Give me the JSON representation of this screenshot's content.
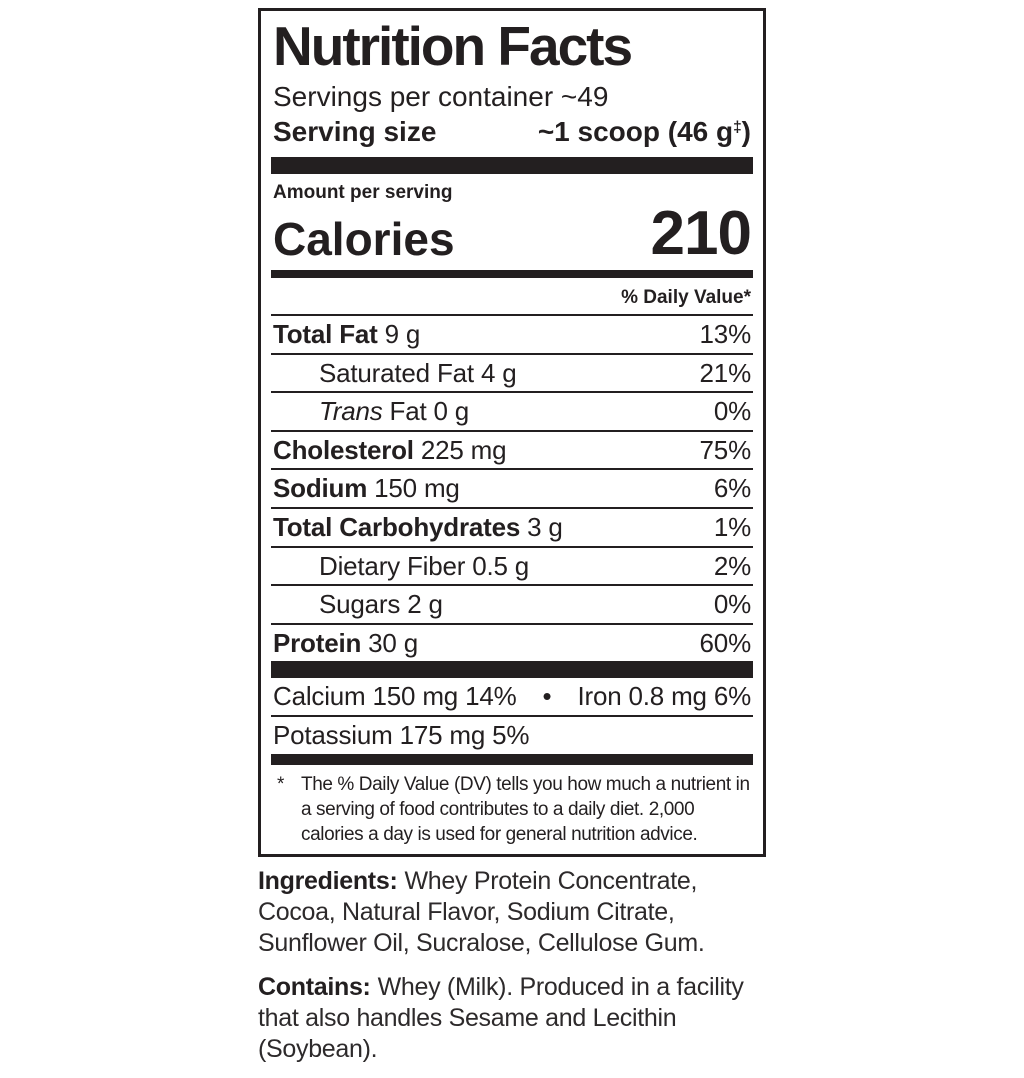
{
  "colors": {
    "text": "#231f20",
    "bar": "#231f20",
    "background": "#ffffff"
  },
  "nutrition_label": {
    "title": "Nutrition Facts",
    "servings_per_container": "Servings per container ~49",
    "serving_size": {
      "label": "Serving size",
      "value_prefix": "~1 scoop (46 g",
      "superscript": "‡",
      "value_suffix": ")"
    },
    "amount_per_serving": "Amount per serving",
    "calories": {
      "label": "Calories",
      "value": "210"
    },
    "daily_value_header": "% Daily Value*",
    "rows": [
      {
        "name": "Total Fat",
        "amount": "9 g",
        "daily_value": "13%"
      },
      {
        "name": "Saturated Fat",
        "amount": "4 g",
        "daily_value": "21%"
      },
      {
        "name": "Trans",
        "amount": "Fat 0 g",
        "daily_value": "0%"
      },
      {
        "name": "Cholesterol",
        "amount": "225 mg",
        "daily_value": "75%"
      },
      {
        "name": "Sodium",
        "amount": "150 mg",
        "daily_value": "6%"
      },
      {
        "name": "Total Carbohydrates",
        "amount": "3 g",
        "daily_value": "1%"
      },
      {
        "name": "Dietary Fiber",
        "amount": "0.5 g",
        "daily_value": "2%"
      },
      {
        "name": "Sugars",
        "amount": "2 g",
        "daily_value": "0%"
      },
      {
        "name": "Protein",
        "amount": "30 g",
        "daily_value": "60%"
      }
    ],
    "minerals": {
      "calcium": "Calcium 150 mg 14%",
      "bullet": "•",
      "iron": "Iron 0.8 mg 6%",
      "potassium": "Potassium 175 mg 5%"
    },
    "footnote": {
      "marker": "*",
      "text": "The % Daily Value (DV) tells you how much a nutrient in a serving of food contributes to a daily diet. 2,000 calories a day is used for general nutrition advice."
    }
  },
  "ingredients": {
    "label": "Ingredients:",
    "text": "Whey Protein Concentrate, Cocoa, Natural Flavor, Sodium Citrate, Sunflower Oil, Sucralose, Cellulose Gum."
  },
  "contains": {
    "label": "Contains:",
    "text": "Whey (Milk). Produced in a facility that also handles Sesame and Lecithin (Soybean)."
  }
}
